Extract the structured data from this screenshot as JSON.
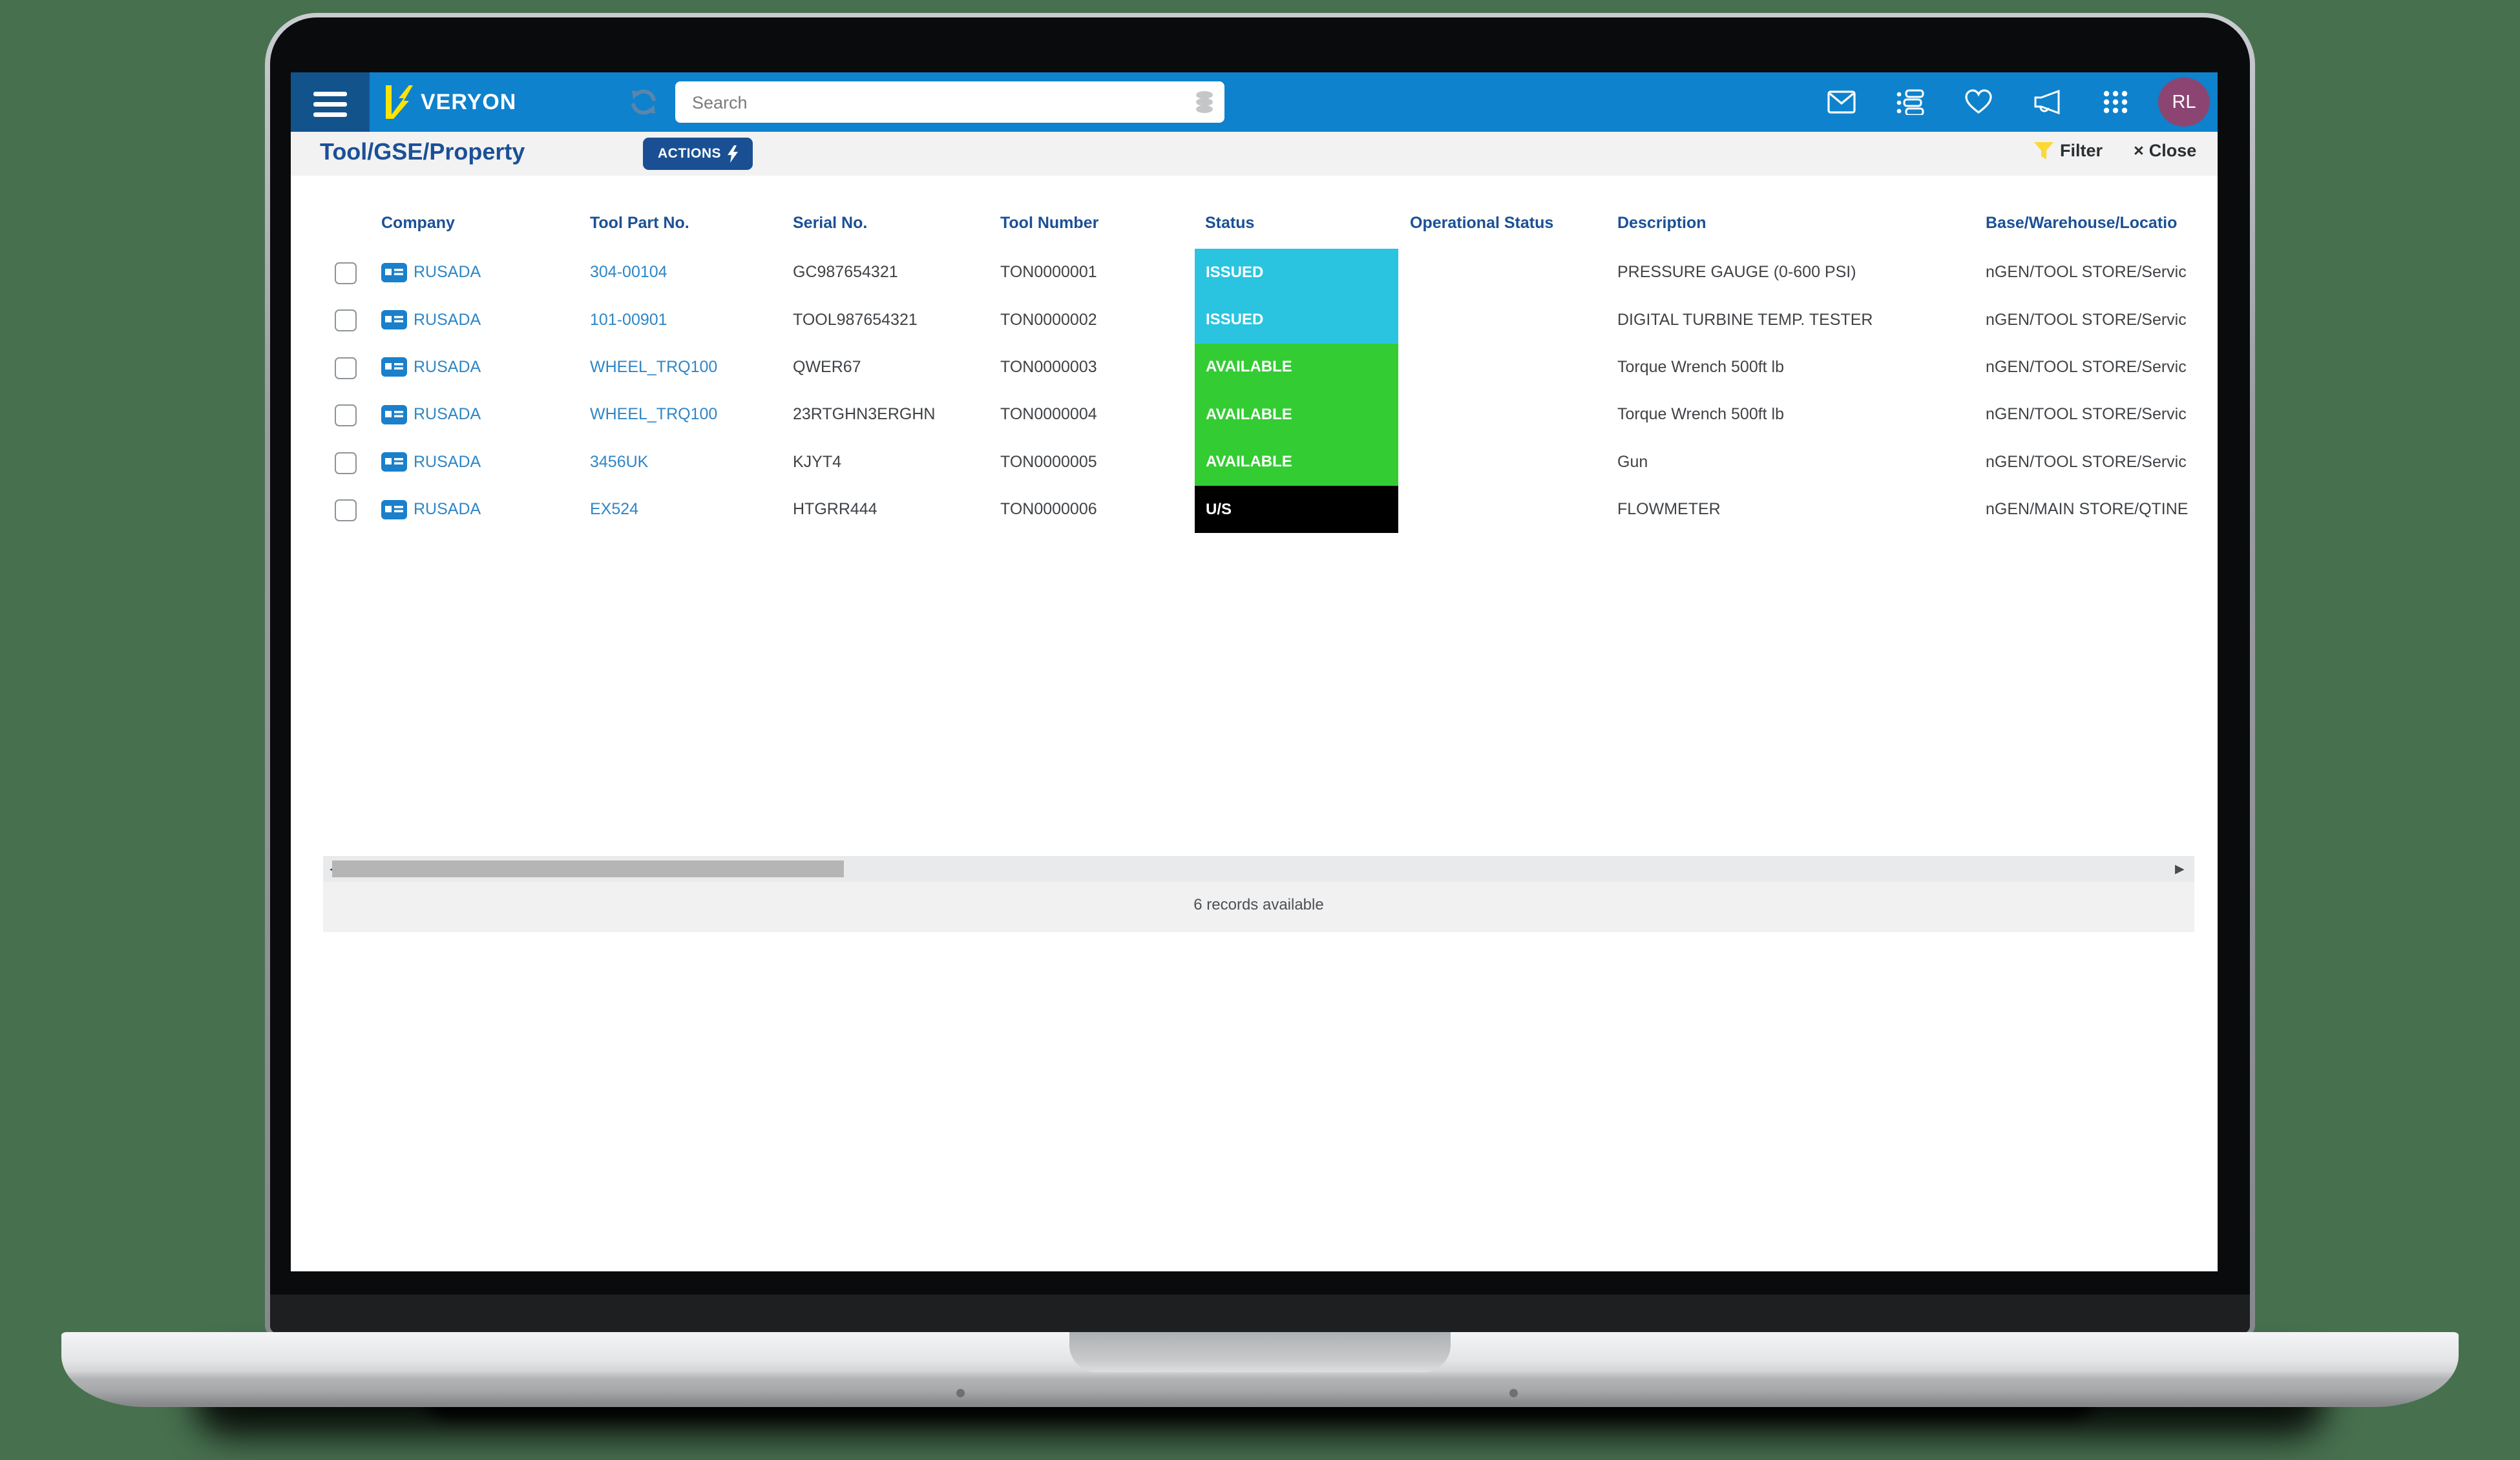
{
  "colors": {
    "background": "#47704f",
    "topbar_blue": "#0e82cd",
    "menu_block_blue": "#12538c",
    "dark_blue": "#1b5096",
    "link_blue": "#2f86c6",
    "issued_cyan": "#2ac4e0",
    "available_green": "#33cc33",
    "us_black": "#000000",
    "avatar_plum": "#8c4572",
    "logo_yellow": "#ffe300",
    "filter_yellow": "#fdd835"
  },
  "topbar": {
    "logo_text": "VERYON",
    "search": {
      "placeholder": "Search",
      "value": ""
    },
    "icons": [
      "refresh-icon",
      "database-icon",
      "mail-icon",
      "tasks-icon",
      "heart-icon",
      "megaphone-icon",
      "apps-grid-icon"
    ],
    "avatar_initials": "RL"
  },
  "page": {
    "title": "Tool/GSE/Property",
    "actions_label": "ACTIONS",
    "filter_label": "Filter",
    "close_label": "Close",
    "close_x": "×"
  },
  "table": {
    "columns": [
      {
        "label": "Company"
      },
      {
        "label": "Tool Part No."
      },
      {
        "label": "Serial No."
      },
      {
        "label": "Tool Number"
      },
      {
        "label": "Status"
      },
      {
        "label": "Operational Status"
      },
      {
        "label": "Description"
      },
      {
        "label": "Base/Warehouse/Locatio"
      }
    ],
    "rows": [
      {
        "company": "RUSADA",
        "part_no": "304-00104",
        "serial": "GC987654321",
        "tool_number": "TON0000001",
        "status": "ISSUED",
        "status_color": "#2ac4e0",
        "operational_status": "",
        "description": "PRESSURE GAUGE (0-600 PSI)",
        "base": "nGEN/TOOL STORE/Servic"
      },
      {
        "company": "RUSADA",
        "part_no": "101-00901",
        "serial": "TOOL987654321",
        "tool_number": "TON0000002",
        "status": "ISSUED",
        "status_color": "#2ac4e0",
        "operational_status": "",
        "description": "DIGITAL TURBINE TEMP. TESTER",
        "base": "nGEN/TOOL STORE/Servic"
      },
      {
        "company": "RUSADA",
        "part_no": "WHEEL_TRQ100",
        "serial": "QWER67",
        "tool_number": "TON0000003",
        "status": "AVAILABLE",
        "status_color": "#33cc33",
        "operational_status": "",
        "description": "Torque Wrench 500ft lb",
        "base": "nGEN/TOOL STORE/Servic"
      },
      {
        "company": "RUSADA",
        "part_no": "WHEEL_TRQ100",
        "serial": "23RTGHN3ERGHN",
        "tool_number": "TON0000004",
        "status": "AVAILABLE",
        "status_color": "#33cc33",
        "operational_status": "",
        "description": "Torque Wrench 500ft lb",
        "base": "nGEN/TOOL STORE/Servic"
      },
      {
        "company": "RUSADA",
        "part_no": "3456UK",
        "serial": "KJYT4",
        "tool_number": "TON0000005",
        "status": "AVAILABLE",
        "status_color": "#33cc33",
        "operational_status": "",
        "description": "Gun",
        "base": "nGEN/TOOL STORE/Servic"
      },
      {
        "company": "RUSADA",
        "part_no": "EX524",
        "serial": "HTGRR444",
        "tool_number": "TON0000006",
        "status": "U/S",
        "status_color": "#000000",
        "operational_status": "",
        "description": "FLOWMETER",
        "base": "nGEN/MAIN STORE/QTINE"
      }
    ]
  },
  "footer": {
    "records_text": "6 records available",
    "left_arrow": "◀",
    "right_arrow": "▶"
  }
}
